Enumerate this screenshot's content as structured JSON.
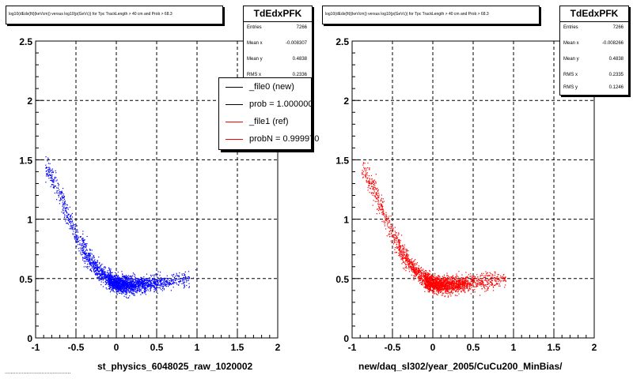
{
  "panels": [
    {
      "title": "log10(dEdx(fit)(keVcm)) versus log10(p(GeVc)) for Tpc TrackLength > 40 cm and Prob > 68.3",
      "stats": {
        "name": "TdEdxPFK",
        "entries_label": "Entries",
        "entries": "7266",
        "meanx_label": "Mean x",
        "meanx": "-0.008307",
        "meany_label": "Mean y",
        "meany": "0.4838",
        "rmsx_label": "RMS x",
        "rmsx": "0.2336"
      },
      "legend": [
        {
          "label": "_file0 (new)",
          "color": "#000000"
        },
        {
          "label": "prob = 1.000000",
          "color": "#000000"
        },
        {
          "label": "_file1 (ref)",
          "color": "#ff0000"
        },
        {
          "label": "probN = 0.999970",
          "color": "#ff0000"
        }
      ],
      "xlabel": "st_physics_6048025_raw_1020002"
    },
    {
      "title": "log10(dEdx(fit)(keVcm)) versus log10(p(GeVc)) for Tpc TrackLength > 40 cm and Prob > 68.3",
      "stats": {
        "name": "TdEdxPFK",
        "entries_label": "Entries",
        "entries": "7266",
        "meanx_label": "Mean x",
        "meanx": "-0.008266",
        "meany_label": "Mean y",
        "meany": "0.4838",
        "rmsx_label": "RMS x",
        "rmsx": "0.2335",
        "rmsy_label": "RMS y",
        "rmsy": "0.1246"
      },
      "xlabel": "new/daq_sl302/year_2005/CuCu200_MinBias/"
    }
  ],
  "footer_note": "...........................................",
  "chart_data": [
    {
      "type": "scatter",
      "title": "log10(dEdx(fit)(keVcm)) versus log10(p(GeVc)) for Tpc TrackLength > 40 cm and Prob > 68.3",
      "xlabel": "st_physics_6048025_raw_1020002",
      "ylabel": "",
      "xlim": [
        -1,
        2
      ],
      "ylim": [
        0,
        2.5
      ],
      "xticks": [
        "-1",
        "-0.5",
        "0",
        "0.5",
        "1",
        "1.5",
        "2"
      ],
      "yticks": [
        "0",
        "0.5",
        "1",
        "1.5",
        "2",
        "2.5"
      ],
      "grid": true,
      "series": [
        {
          "name": "_file0 (new)",
          "color": "#0000ff",
          "band": {
            "x": [
              -0.85,
              -0.7,
              -0.55,
              -0.45,
              -0.35,
              -0.25,
              -0.15,
              -0.05,
              0.05,
              0.2,
              0.35,
              0.5,
              0.65,
              0.85
            ],
            "y": [
              1.42,
              1.2,
              0.95,
              0.8,
              0.68,
              0.59,
              0.52,
              0.47,
              0.45,
              0.45,
              0.46,
              0.47,
              0.48,
              0.5
            ]
          }
        }
      ]
    },
    {
      "type": "scatter",
      "title": "log10(dEdx(fit)(keVcm)) versus log10(p(GeVc)) for Tpc TrackLength > 40 cm and Prob > 68.3",
      "xlabel": "new/daq_sl302/year_2005/CuCu200_MinBias/",
      "ylabel": "",
      "xlim": [
        -1,
        2
      ],
      "ylim": [
        0,
        2.5
      ],
      "xticks": [
        "-1",
        "-0.5",
        "0",
        "0.5",
        "1",
        "1.5",
        "2"
      ],
      "yticks": [
        "0",
        "0.5",
        "1",
        "1.5",
        "2",
        "2.5"
      ],
      "grid": true,
      "series": [
        {
          "name": "_file1 (ref)",
          "color": "#ff0000",
          "band": {
            "x": [
              -0.85,
              -0.7,
              -0.55,
              -0.45,
              -0.35,
              -0.25,
              -0.15,
              -0.05,
              0.05,
              0.2,
              0.35,
              0.5,
              0.65,
              0.85
            ],
            "y": [
              1.42,
              1.2,
              0.95,
              0.8,
              0.68,
              0.59,
              0.52,
              0.47,
              0.45,
              0.45,
              0.46,
              0.47,
              0.48,
              0.5
            ]
          }
        }
      ]
    }
  ]
}
